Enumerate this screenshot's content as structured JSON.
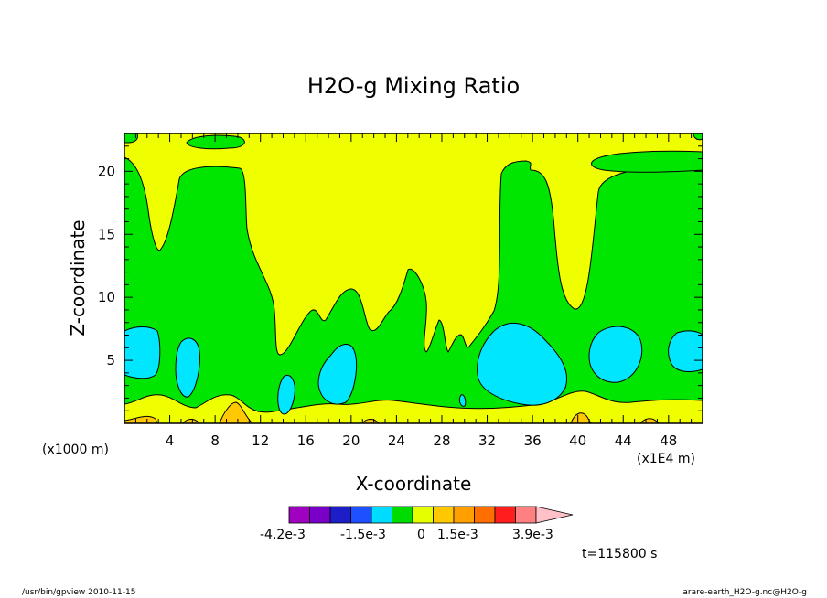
{
  "chart_data": {
    "type": "heatmap",
    "title": "H2O-g Mixing Ratio",
    "xlabel": "X-coordinate",
    "ylabel": "Z-coordinate",
    "x_unit_left": "(x1000 m)",
    "x_unit_right": "(x1E4 m)",
    "xlim": [
      0,
      51
    ],
    "ylim": [
      0,
      23
    ],
    "x_ticks": [
      4,
      8,
      12,
      16,
      20,
      24,
      28,
      32,
      36,
      40,
      44,
      48
    ],
    "y_ticks": [
      5,
      10,
      15,
      20
    ],
    "colorbar": {
      "colors": [
        "#a000c0",
        "#7a00c8",
        "#1e1ec8",
        "#1e50ff",
        "#00dcff",
        "#00dc00",
        "#e6ff00",
        "#ffc800",
        "#ffa000",
        "#ff6e00",
        "#ff1e1e",
        "#ff8080",
        "#ffc0c8"
      ],
      "labels": [
        "-4.2e-3",
        "-1.5e-3",
        "0",
        "1.5e-3",
        "3.9e-3"
      ]
    },
    "time_label": "t=115800 s",
    "regions": {
      "yellow_background": "#f0ff00",
      "green": "#00e600",
      "cyan": "#00e6ff",
      "orange": "#ffc800"
    }
  },
  "footer": {
    "left": "/usr/bin/gpview   2010-11-15",
    "right": "arare-earth_H2O-g.nc@H2O-g"
  }
}
